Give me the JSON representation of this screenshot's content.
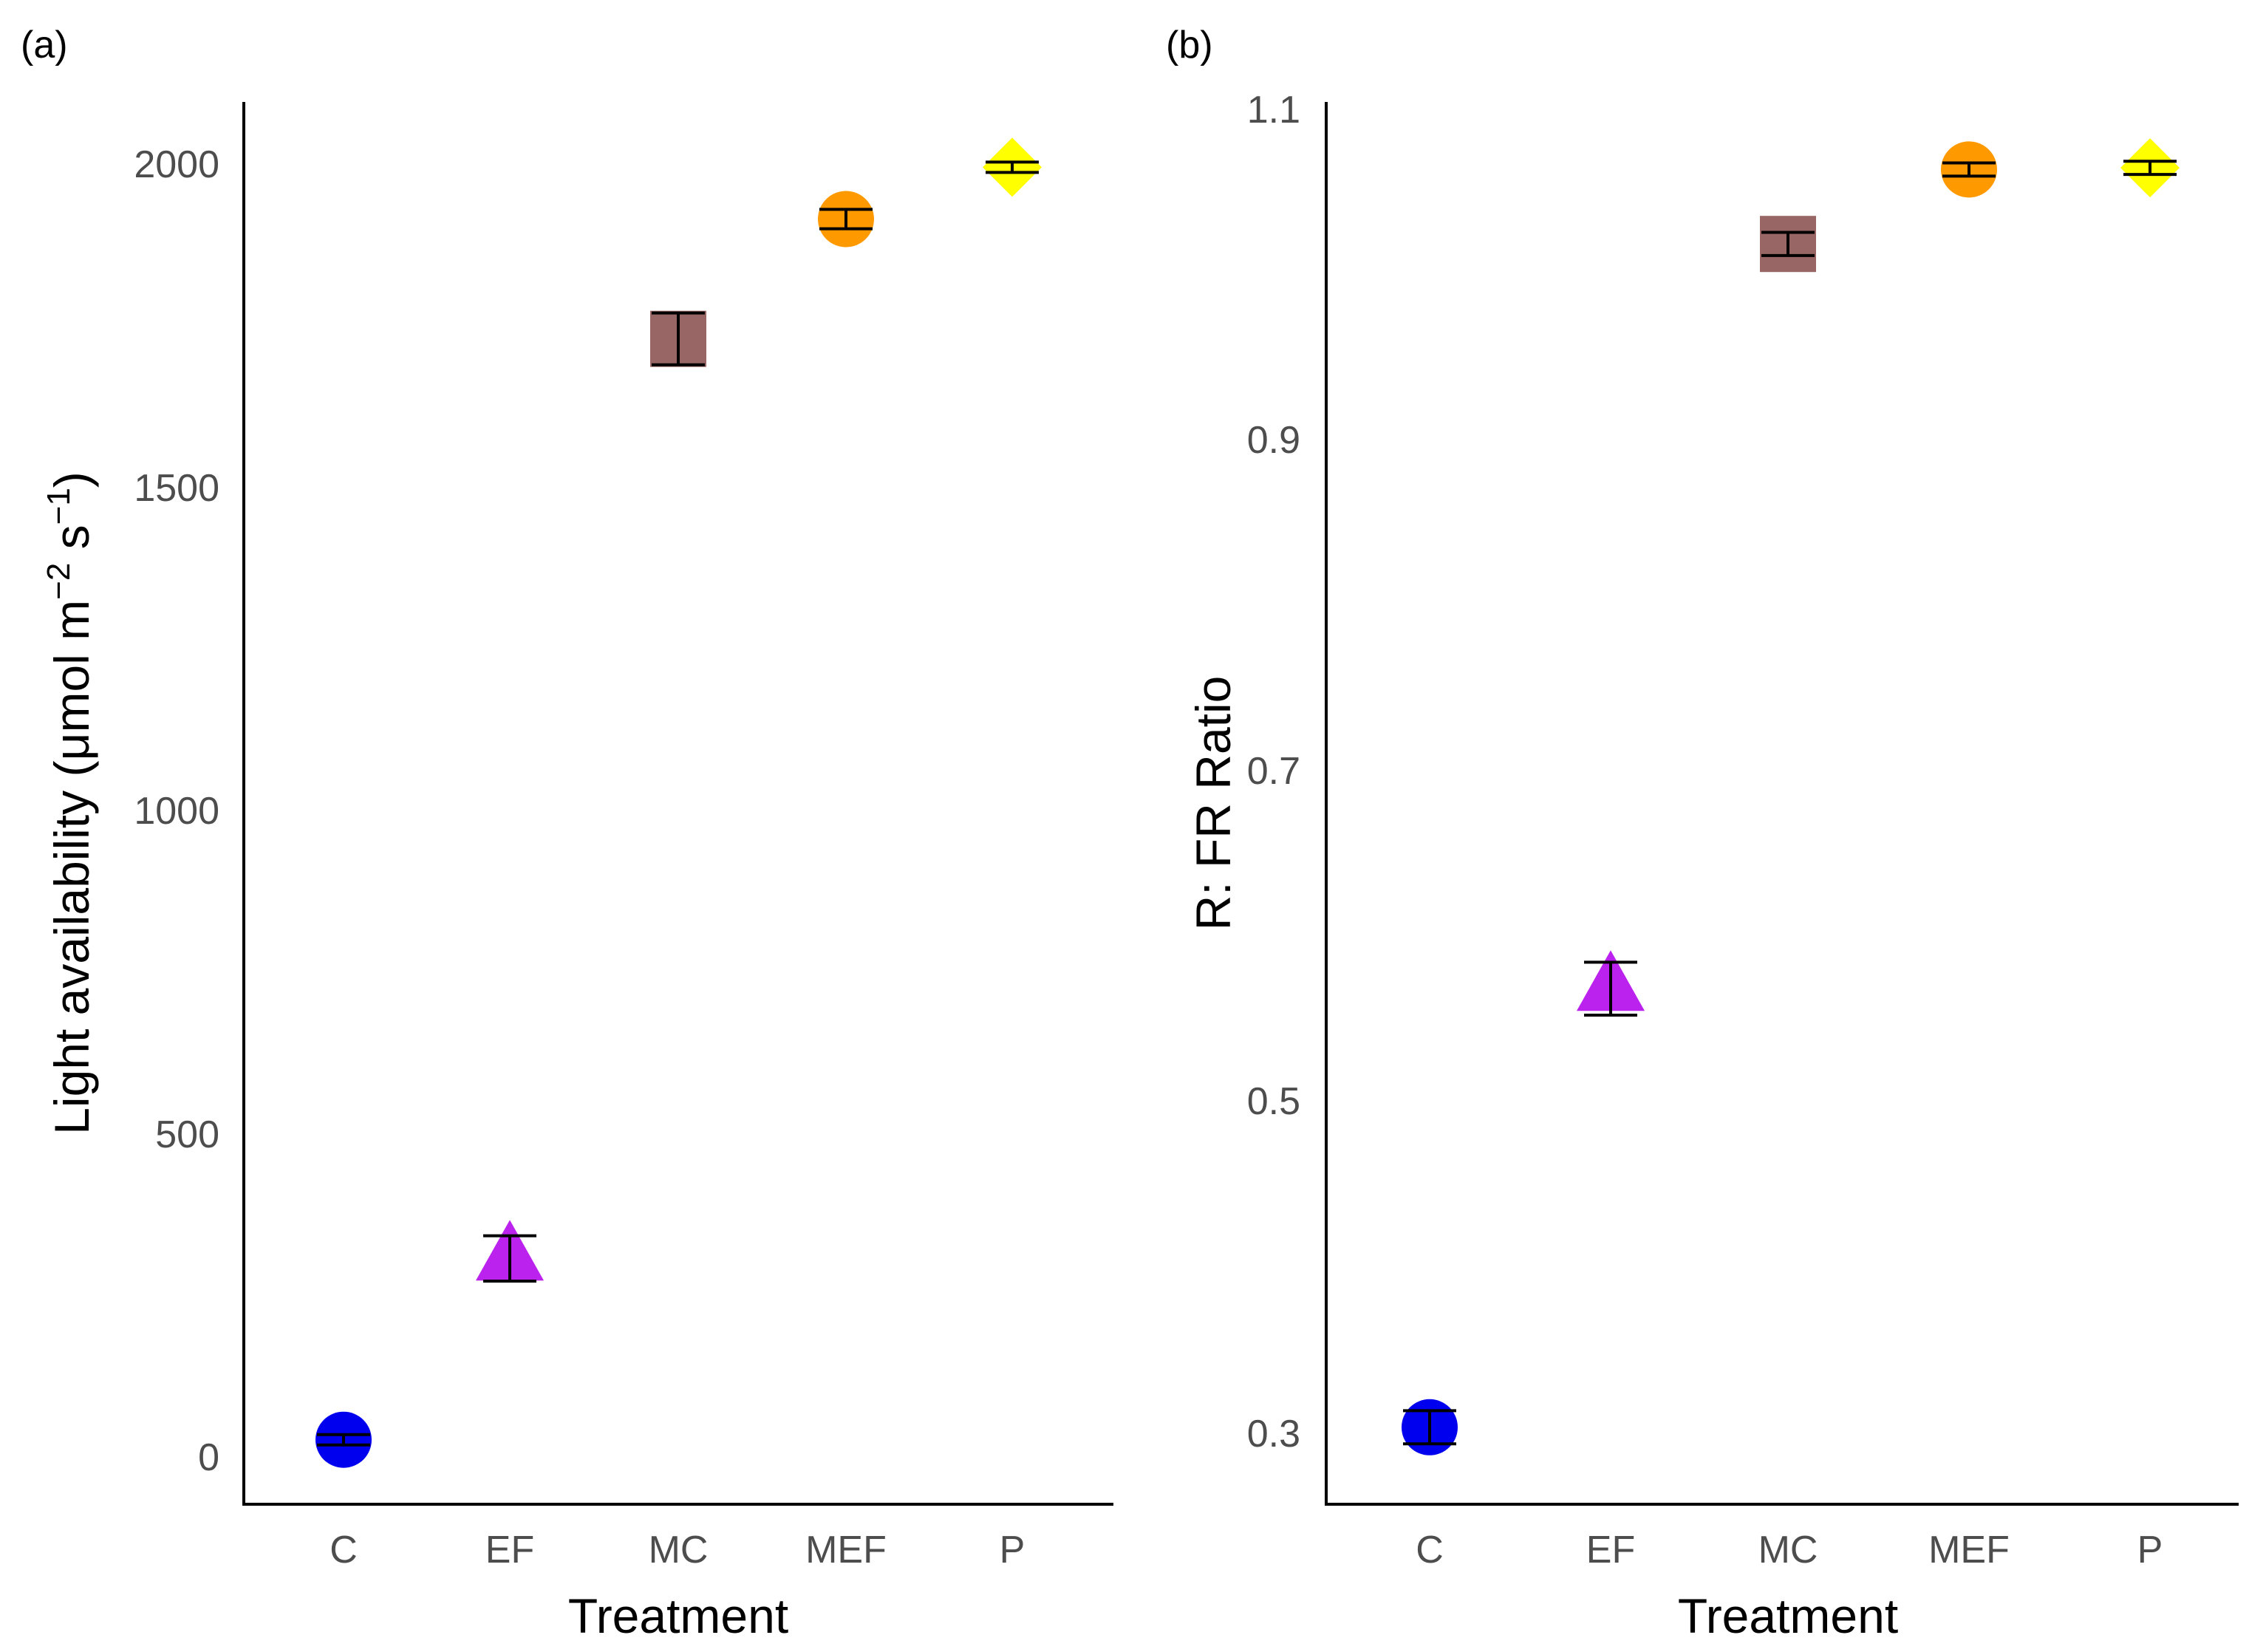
{
  "chart_data": [
    {
      "type": "scatter",
      "panel_label": "(a)",
      "title": "",
      "xlabel": "Treatment",
      "ylabel_main": "Light availability (μmol m",
      "ylabel_sup1": "−2",
      "ylabel_mid": " s",
      "ylabel_sup2": "−1",
      "ylabel_end": ")",
      "categories": [
        "C",
        "EF",
        "MC",
        "MEF",
        "P"
      ],
      "values": [
        30,
        310,
        1730,
        1915,
        1995
      ],
      "errors": [
        8,
        35,
        40,
        15,
        8
      ],
      "yticks": [
        "0",
        "500",
        "1000",
        "1500",
        "2000"
      ],
      "ytick_values": [
        0,
        500,
        1000,
        1500,
        2000
      ],
      "ylim": [
        -70,
        2100
      ],
      "grid": false
    },
    {
      "type": "scatter",
      "panel_label": "(b)",
      "title": "",
      "xlabel": "Treatment",
      "ylabel": "R: FR Ratio",
      "categories": [
        "C",
        "EF",
        "MC",
        "MEF",
        "P"
      ],
      "values": [
        0.305,
        0.57,
        1.02,
        1.065,
        1.066
      ],
      "errors": [
        0.01,
        0.016,
        0.007,
        0.004,
        0.004
      ],
      "yticks": [
        "0.3",
        "0.5",
        "0.7",
        "0.9",
        "1.1"
      ],
      "ytick_values": [
        0.3,
        0.5,
        0.7,
        0.9,
        1.1
      ],
      "ylim": [
        0.255,
        1.12
      ],
      "grid": false
    }
  ],
  "series_style": {
    "C": {
      "shape": "circle",
      "color": "#0000ee"
    },
    "EF": {
      "shape": "triangle",
      "color": "#bb22ee"
    },
    "MC": {
      "shape": "square",
      "color": "#996666"
    },
    "MEF": {
      "shape": "circle",
      "color": "#ff9900"
    },
    "P": {
      "shape": "diamond",
      "color": "#ffff00"
    }
  }
}
